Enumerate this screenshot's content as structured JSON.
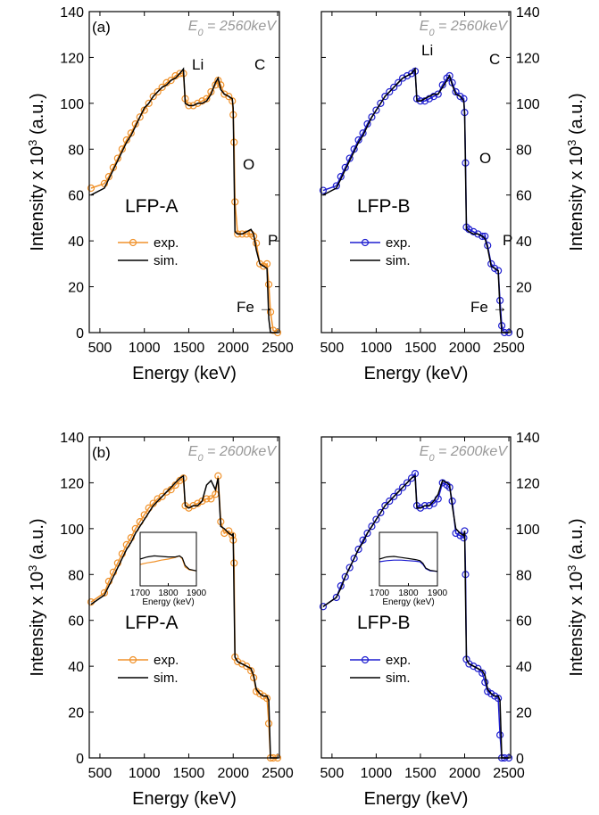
{
  "chart_data": [
    {
      "type": "line",
      "panel_label": "(a)",
      "yaxis_position": "left",
      "e0": {
        "symbol": "E",
        "subscript": "0",
        "value": " = 2560keV"
      },
      "sample": "LFP-A",
      "sample_color": "#f0922b",
      "annotations": [
        "Li",
        "C",
        "O",
        "P",
        "Fe →"
      ],
      "xlabel": "Energy (keV)",
      "ylabel": {
        "text": "Intensity x 10",
        "superscript": "3",
        "unit": " (a.u.)"
      },
      "xlim": [
        380,
        2520
      ],
      "xticks": [
        500,
        1000,
        1500,
        2000,
        2500
      ],
      "ylim": [
        0,
        140
      ],
      "yticks": [
        0,
        20,
        40,
        60,
        80,
        100,
        120,
        140
      ],
      "x": [
        400,
        550,
        600,
        650,
        700,
        750,
        800,
        850,
        900,
        950,
        1000,
        1050,
        1100,
        1150,
        1200,
        1250,
        1300,
        1350,
        1400,
        1440,
        1460,
        1500,
        1550,
        1600,
        1650,
        1700,
        1750,
        1800,
        1830,
        1860,
        1900,
        1950,
        1990,
        2000,
        2010,
        2020,
        2050,
        2100,
        2150,
        2200,
        2230,
        2260,
        2300,
        2340,
        2380,
        2400,
        2420,
        2450,
        2500
      ],
      "series": [
        {
          "name": "exp.",
          "color": "#f0922b",
          "marker": "circle",
          "values": [
            63,
            65,
            68,
            72,
            76,
            80,
            84,
            87,
            91,
            94,
            97,
            100,
            103,
            105,
            107,
            109,
            110,
            112,
            113,
            113,
            102,
            99,
            99,
            100,
            101,
            102,
            105,
            108,
            110,
            108,
            104,
            103,
            101,
            95,
            83,
            57,
            43,
            43,
            43,
            43,
            42,
            39,
            30,
            29,
            30,
            21,
            9,
            1,
            0
          ]
        },
        {
          "name": "sim.",
          "color": "#000000",
          "marker": "none",
          "values": [
            60,
            63,
            67,
            71,
            75,
            79,
            83,
            86,
            90,
            94,
            98,
            100,
            103,
            105,
            107,
            108,
            110,
            111,
            113,
            115,
            100,
            99,
            99,
            100,
            100,
            101,
            104,
            109,
            111,
            106,
            104,
            103,
            102,
            98,
            70,
            44,
            43,
            43,
            44,
            45,
            43,
            36,
            30,
            29,
            28,
            6,
            0,
            0,
            0
          ]
        }
      ]
    },
    {
      "type": "line",
      "yaxis_position": "right",
      "e0": {
        "symbol": "E",
        "subscript": "0",
        "value": " = 2560keV"
      },
      "sample": "LFP-B",
      "sample_color": "#1f1fd0",
      "annotations": [
        "Li",
        "C",
        "O",
        "P",
        "Fe →"
      ],
      "xlabel": "Energy (keV)",
      "ylabel": {
        "text": "Intensity x 10",
        "superscript": "3",
        "unit": " (a.u.)"
      },
      "xlim": [
        380,
        2520
      ],
      "xticks": [
        500,
        1000,
        1500,
        2000,
        2500
      ],
      "ylim": [
        0,
        140
      ],
      "yticks": [
        0,
        20,
        40,
        60,
        80,
        100,
        120,
        140
      ],
      "x": [
        400,
        550,
        600,
        650,
        700,
        750,
        800,
        850,
        900,
        950,
        1000,
        1050,
        1100,
        1150,
        1200,
        1250,
        1300,
        1350,
        1400,
        1440,
        1460,
        1500,
        1550,
        1600,
        1650,
        1700,
        1750,
        1800,
        1830,
        1860,
        1900,
        1950,
        1990,
        2000,
        2010,
        2020,
        2050,
        2100,
        2150,
        2200,
        2230,
        2260,
        2300,
        2340,
        2380,
        2400,
        2420,
        2450,
        2500
      ],
      "series": [
        {
          "name": "exp.",
          "color": "#1f1fd0",
          "marker": "circle",
          "values": [
            62,
            64,
            68,
            72,
            76,
            80,
            84,
            87,
            91,
            94,
            97,
            100,
            103,
            105,
            107,
            109,
            111,
            112,
            113,
            114,
            102,
            101,
            101,
            102,
            103,
            104,
            108,
            111,
            112,
            109,
            105,
            103,
            102,
            96,
            74,
            46,
            45,
            44,
            43,
            42,
            42,
            38,
            30,
            28,
            27,
            14,
            3,
            0,
            0
          ]
        },
        {
          "name": "sim.",
          "color": "#000000",
          "marker": "none",
          "values": [
            60,
            63,
            67,
            71,
            75,
            79,
            83,
            86,
            90,
            94,
            97,
            100,
            103,
            105,
            107,
            109,
            111,
            112,
            113,
            115,
            101,
            101,
            102,
            103,
            104,
            104,
            107,
            110,
            112,
            108,
            104,
            103,
            101,
            95,
            70,
            45,
            44,
            43,
            43,
            42,
            41,
            37,
            29,
            28,
            27,
            10,
            0,
            0,
            0
          ]
        }
      ]
    },
    {
      "type": "line",
      "panel_label": "(b)",
      "yaxis_position": "left",
      "e0": {
        "symbol": "E",
        "subscript": "0",
        "value": " = 2600keV"
      },
      "sample": "LFP-A",
      "sample_color": "#f0922b",
      "xlabel": "Energy (keV)",
      "ylabel": {
        "text": "Intensity x 10",
        "superscript": "3",
        "unit": " (a.u.)"
      },
      "xlim": [
        380,
        2520
      ],
      "xticks": [
        500,
        1000,
        1500,
        2000,
        2500
      ],
      "ylim": [
        0,
        140
      ],
      "yticks": [
        0,
        20,
        40,
        60,
        80,
        100,
        120,
        140
      ],
      "x": [
        400,
        550,
        600,
        650,
        700,
        750,
        800,
        850,
        900,
        950,
        1000,
        1050,
        1100,
        1150,
        1200,
        1250,
        1300,
        1350,
        1400,
        1440,
        1460,
        1500,
        1550,
        1600,
        1650,
        1700,
        1750,
        1800,
        1830,
        1860,
        1900,
        1950,
        1990,
        2000,
        2010,
        2020,
        2050,
        2100,
        2150,
        2200,
        2230,
        2260,
        2300,
        2340,
        2380,
        2400,
        2420,
        2450,
        2500
      ],
      "series": [
        {
          "name": "exp.",
          "color": "#f0922b",
          "marker": "circle",
          "values": [
            68,
            72,
            77,
            81,
            85,
            89,
            93,
            96,
            100,
            103,
            106,
            109,
            111,
            113,
            114,
            116,
            117,
            119,
            121,
            122,
            110,
            109,
            110,
            111,
            112,
            113,
            113,
            115,
            123,
            103,
            98,
            99,
            97,
            95,
            85,
            44,
            42,
            41,
            40,
            38,
            35,
            29,
            28,
            27,
            26,
            15,
            0,
            0,
            0
          ]
        },
        {
          "name": "sim.",
          "color": "#000000",
          "marker": "none",
          "values": [
            67,
            71,
            75,
            79,
            83,
            87,
            91,
            94,
            98,
            101,
            104,
            107,
            110,
            112,
            114,
            116,
            118,
            120,
            122,
            123,
            110,
            109,
            110,
            110,
            112,
            119,
            121,
            117,
            122,
            101,
            100,
            98,
            97,
            98,
            70,
            44,
            42,
            41,
            40,
            39,
            36,
            30,
            28,
            27,
            27,
            25,
            0,
            0,
            0
          ]
        }
      ],
      "inset": {
        "xlim": [
          1700,
          1900
        ],
        "xticks": [
          1700,
          1800,
          1900
        ],
        "ylim": [
          0,
          100
        ],
        "xlabel": "Energy (keV)",
        "x": [
          1700,
          1725,
          1750,
          1775,
          1800,
          1825,
          1840,
          1850,
          1860,
          1875,
          1900
        ],
        "series": [
          {
            "color": "#f0922b",
            "values": [
              40,
              43,
              45,
              48,
              50,
              53,
              56,
              50,
              35,
              30,
              28
            ]
          },
          {
            "color": "#000000",
            "values": [
              50,
              54,
              56,
              55,
              54,
              54,
              56,
              52,
              38,
              31,
              28
            ]
          }
        ]
      }
    },
    {
      "type": "line",
      "yaxis_position": "right",
      "e0": {
        "symbol": "E",
        "subscript": "0",
        "value": " = 2600keV"
      },
      "sample": "LFP-B",
      "sample_color": "#1f1fd0",
      "xlabel": "Energy (keV)",
      "ylabel": {
        "text": "Intensity x 10",
        "superscript": "3",
        "unit": " (a.u.)"
      },
      "xlim": [
        380,
        2520
      ],
      "xticks": [
        500,
        1000,
        1500,
        2000,
        2500
      ],
      "ylim": [
        0,
        140
      ],
      "yticks": [
        0,
        20,
        40,
        60,
        80,
        100,
        120,
        140
      ],
      "x": [
        400,
        550,
        600,
        650,
        700,
        750,
        800,
        850,
        900,
        950,
        1000,
        1050,
        1100,
        1150,
        1200,
        1250,
        1300,
        1350,
        1400,
        1440,
        1460,
        1500,
        1550,
        1600,
        1650,
        1700,
        1750,
        1800,
        1830,
        1860,
        1900,
        1950,
        1990,
        2000,
        2010,
        2020,
        2050,
        2100,
        2150,
        2200,
        2230,
        2260,
        2300,
        2340,
        2380,
        2400,
        2420,
        2450,
        2500
      ],
      "series": [
        {
          "name": "exp.",
          "color": "#1f1fd0",
          "marker": "circle",
          "values": [
            66,
            70,
            75,
            79,
            83,
            87,
            91,
            95,
            98,
            101,
            104,
            107,
            110,
            112,
            114,
            116,
            118,
            120,
            122,
            124,
            110,
            109,
            110,
            110,
            111,
            113,
            120,
            119,
            118,
            112,
            98,
            97,
            96,
            99,
            80,
            43,
            41,
            40,
            39,
            37,
            33,
            29,
            28,
            27,
            26,
            10,
            0,
            0,
            0
          ]
        },
        {
          "name": "sim.",
          "color": "#000000",
          "marker": "none",
          "values": [
            66,
            70,
            74,
            79,
            83,
            87,
            91,
            94,
            98,
            101,
            104,
            107,
            110,
            112,
            114,
            116,
            118,
            120,
            122,
            123,
            109,
            109,
            110,
            110,
            112,
            115,
            121,
            120,
            119,
            110,
            100,
            98,
            97,
            99,
            70,
            43,
            41,
            40,
            39,
            38,
            36,
            30,
            28,
            27,
            27,
            25,
            0,
            0,
            0
          ]
        }
      ],
      "inset": {
        "xlim": [
          1700,
          1900
        ],
        "xticks": [
          1700,
          1800,
          1900
        ],
        "ylim": [
          0,
          100
        ],
        "xlabel": "Energy (keV)",
        "x": [
          1700,
          1725,
          1750,
          1775,
          1800,
          1825,
          1840,
          1850,
          1860,
          1875,
          1900
        ],
        "series": [
          {
            "color": "#1f1fd0",
            "values": [
              45,
              47,
              48,
              48,
              47,
              46,
              45,
              40,
              32,
              28,
              27
            ]
          },
          {
            "color": "#000000",
            "values": [
              50,
              54,
              55,
              53,
              51,
              49,
              47,
              42,
              33,
              29,
              27
            ]
          }
        ]
      }
    }
  ]
}
